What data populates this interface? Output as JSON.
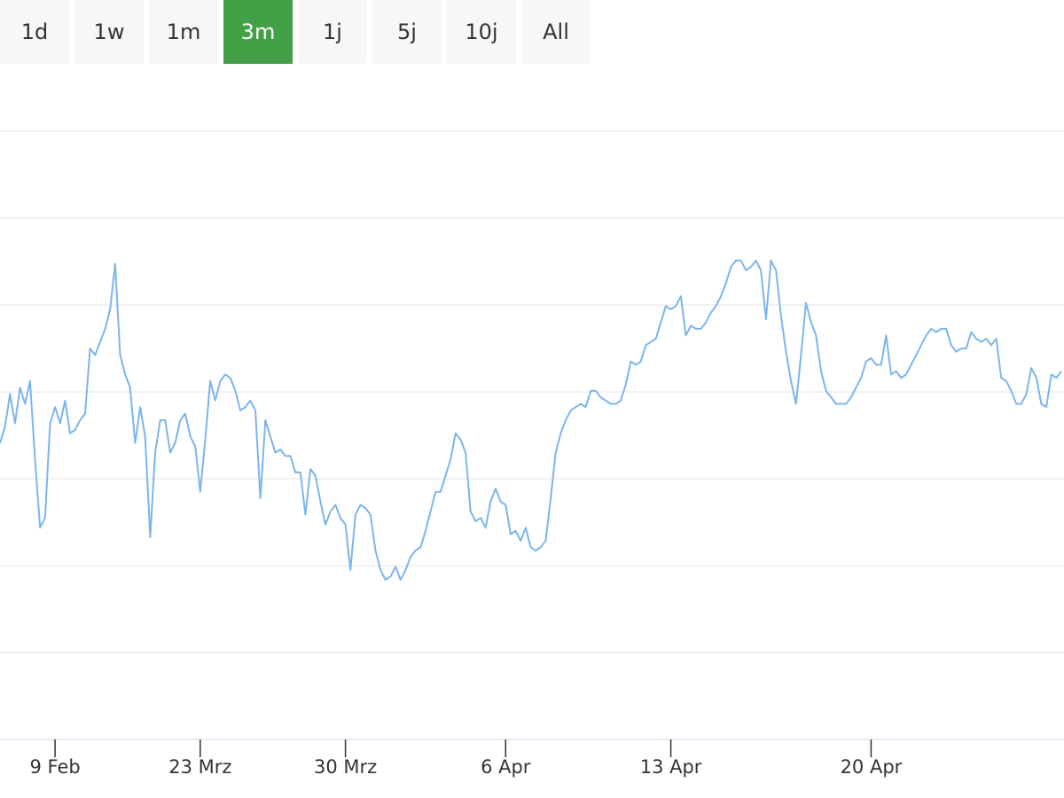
{
  "range_selector": {
    "buttons": [
      {
        "label": "1d",
        "active": false
      },
      {
        "label": "1w",
        "active": false
      },
      {
        "label": "1m",
        "active": false
      },
      {
        "label": "3m",
        "active": true
      },
      {
        "label": "1j",
        "active": false
      },
      {
        "label": "5j",
        "active": false
      },
      {
        "label": "10j",
        "active": false
      },
      {
        "label": "All",
        "active": false
      }
    ],
    "active_color": "#43a047"
  },
  "chart_data": {
    "type": "line",
    "title": "",
    "xlabel": "",
    "ylabel": "",
    "grid": true,
    "legend": "none",
    "line_color": "#7cb5ec",
    "x_ticks": [
      {
        "label": "9 Feb",
        "i": 11
      },
      {
        "label": "23 Mrz",
        "i": 40
      },
      {
        "label": "30 Mrz",
        "i": 69
      },
      {
        "label": "6 Apr",
        "i": 101
      },
      {
        "label": "13 Apr",
        "i": 134
      },
      {
        "label": "20 Apr",
        "i": 174
      }
    ],
    "ylim": [
      0,
      100
    ],
    "series": [
      {
        "values": [
          45.5,
          48,
          53,
          48.5,
          54,
          51.5,
          55,
          43,
          32.5,
          34,
          48.5,
          51,
          48.5,
          52,
          47,
          47.5,
          49,
          50,
          60,
          59,
          61,
          63,
          66,
          73,
          59,
          56,
          54,
          45.5,
          51,
          46.5,
          31,
          44,
          49,
          49,
          44,
          45.5,
          49,
          50,
          46.5,
          45,
          38,
          46,
          55,
          52,
          55,
          56,
          55.5,
          53.5,
          50.5,
          51,
          52,
          50.5,
          37,
          49,
          46.5,
          44,
          44.5,
          43.5,
          43.5,
          41,
          41,
          34.5,
          41.5,
          40.5,
          36.5,
          33,
          35,
          36,
          34,
          33,
          26,
          34.5,
          36,
          35.5,
          34.5,
          29,
          26,
          24.5,
          25,
          26.5,
          24.5,
          26,
          28,
          29,
          29.5,
          32,
          35,
          38,
          38,
          40.5,
          43,
          47,
          46,
          44,
          35,
          33.5,
          34,
          32.5,
          36.5,
          38.5,
          36.5,
          36,
          31.5,
          32,
          30.5,
          32.5,
          29.5,
          29,
          29.5,
          30.5,
          37,
          44,
          47,
          49,
          50.5,
          51,
          51.5,
          51,
          53.5,
          53.5,
          52.5,
          52,
          51.5,
          51.5,
          52,
          54.5,
          58,
          57.5,
          58,
          60.5,
          61,
          61.5,
          64,
          66.5,
          66,
          66.5,
          68,
          62,
          63.5,
          63,
          63,
          64,
          65.5,
          66.5,
          68,
          70,
          72.5,
          73.5,
          73.5,
          72,
          72.5,
          73.5,
          72,
          64.5,
          73.5,
          72,
          65,
          59.5,
          55,
          51.5,
          59,
          67,
          64,
          62,
          56.5,
          53.5,
          52.5,
          51.5,
          51.5,
          51.5,
          52.5,
          54,
          55.5,
          58,
          58.5,
          57.5,
          57.5,
          62,
          56,
          56.5,
          55.5,
          56,
          57.5,
          59,
          60.5,
          62,
          63,
          62.5,
          63,
          63,
          60.5,
          59.5,
          60,
          60,
          62.5,
          61.5,
          61,
          61.5,
          60.5,
          61.5,
          55.5,
          55,
          53.5,
          51.5,
          51.5,
          53,
          57,
          55.5,
          51.5,
          51,
          56,
          55.5,
          56.5
        ]
      }
    ]
  }
}
